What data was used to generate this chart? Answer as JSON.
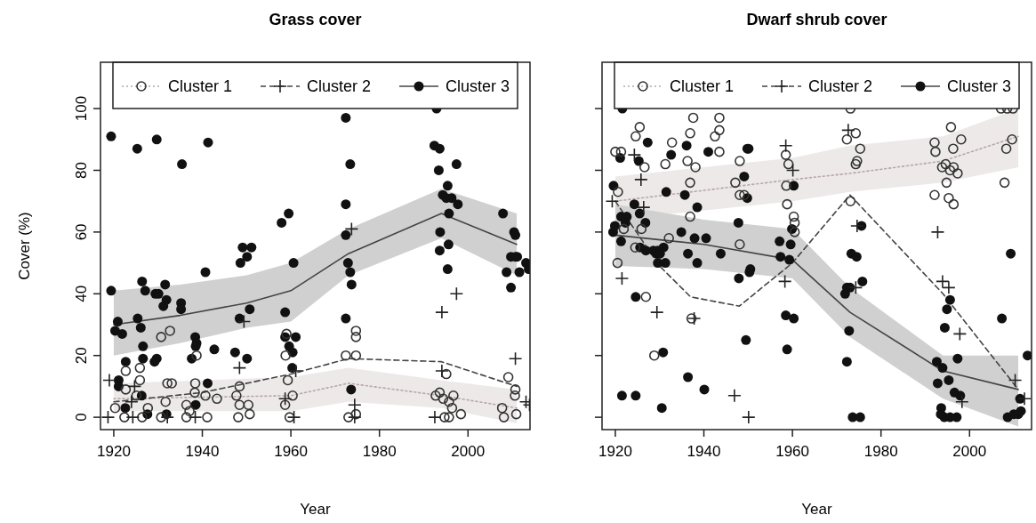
{
  "chart_data": [
    {
      "type": "scatter",
      "title": "Grass cover",
      "xlabel": "Year",
      "ylabel": "Cover (%)",
      "xlim": [
        1917,
        2014
      ],
      "ylim": [
        -4,
        115
      ],
      "xticks": [
        1920,
        1940,
        1960,
        1980,
        2000
      ],
      "yticks": [
        0,
        20,
        40,
        60,
        80,
        100
      ],
      "legend": "top",
      "series": [
        {
          "type": "line",
          "line_style": "dotted",
          "color": "#b8a8a8",
          "x": [
            1920,
            1960,
            1973,
            1994,
            2011
          ],
          "values": [
            6,
            7,
            11,
            7,
            3
          ],
          "lower": [
            2,
            2,
            5,
            3,
            -2
          ],
          "upper": [
            11,
            13,
            16,
            12,
            9
          ]
        },
        {
          "type": "line",
          "line_style": "dashed",
          "color": "#444444",
          "x": [
            1920,
            1940,
            1960,
            1973,
            1994,
            2011
          ],
          "values": [
            5,
            8,
            14,
            19,
            18,
            10
          ]
        },
        {
          "type": "line",
          "line_style": "solid",
          "color": "#444444",
          "x": [
            1920,
            1935,
            1950,
            1960,
            1973,
            1994,
            2011
          ],
          "values": [
            30,
            33,
            37,
            41,
            53,
            66,
            56
          ],
          "lower": [
            20,
            24,
            29,
            31,
            46,
            58,
            46
          ],
          "upper": [
            41,
            43,
            46,
            50,
            61,
            74,
            66
          ]
        },
        {
          "name": "Cluster 1",
          "marker": "circle",
          "color": "#333333",
          "x": [
            1932.7,
            1930.7,
            1974.7,
            1974.7,
            1972.4,
            1974.7,
            1938.7,
            1959,
            1958.8,
            1922.7,
            1925.9,
            1925.9,
            1922.7,
            1925.1,
            1932.1,
            1933.1,
            1938.4,
            1938.3,
            1940.7,
            1943.3,
            1948.4,
            1947.7,
            1948.4,
            1950.4,
            1959.3,
            1960.4,
            1958.7,
            1920.3,
            1931.7,
            1936.4,
            1937.1,
            1927.7,
            1922.4,
            1926.4,
            1930.7,
            1936.4,
            1941.1,
            1948.1,
            1950.7,
            1959.7,
            1973,
            1974.7,
            1995.1,
            2009.1,
            2010.7,
            2010.6,
            1992.7,
            1993.6,
            1994.4,
            1996.7,
            1995.7,
            1996.4,
            1998.4,
            1994.7,
            1995.7,
            2007.7,
            2008.1,
            2010.9
          ],
          "values": [
            28,
            26,
            28,
            26,
            20,
            20,
            20,
            27,
            20,
            15,
            16,
            12,
            9,
            7,
            11,
            11,
            11,
            8,
            7,
            6,
            10,
            7,
            4,
            4,
            12,
            7,
            4,
            3,
            5,
            4,
            2,
            3,
            0,
            0,
            0,
            0,
            0,
            0,
            1,
            0,
            0,
            1,
            14,
            13,
            9,
            7,
            7,
            8,
            6,
            7,
            5,
            3,
            1,
            0,
            0,
            3,
            0,
            1
          ]
        },
        {
          "name": "Cluster 2",
          "marker": "cross",
          "color": "#222222",
          "x": [
            1919,
            1924.7,
            1924,
            1918.7,
            1924.3,
            1932.1,
            1938.4,
            1948.4,
            1949.4,
            1958.7,
            1961.1,
            1960.7,
            1974.4,
            1974.4,
            1973.7,
            1997.4,
            1994.1,
            2010.7,
            1994.1,
            1992.5,
            2013.1,
            2013.9
          ],
          "values": [
            12,
            10,
            5,
            0,
            0,
            0,
            0,
            16,
            31,
            6,
            15,
            0,
            4,
            0,
            61,
            40,
            34,
            19,
            15,
            0,
            5,
            4
          ]
        },
        {
          "name": "Cluster 3",
          "marker": "circle",
          "color": "#111111",
          "x": [
            1919.4,
            1925.3,
            1929.7,
            1935.4,
            1941.3,
            1972.4,
            1973.4,
            1972.4,
            1959.5,
            1957.9,
            1949.1,
            1951.1,
            1950.1,
            1948.6,
            1960.6,
            1940.7,
            1919.4,
            1926.4,
            1931.6,
            1927.1,
            1929.4,
            1930.1,
            1931.9,
            1931.2,
            1935.2,
            1935.2,
            1950.7,
            1958.7,
            1972.9,
            1973.4,
            1973.7,
            1972.4,
            1972.4,
            1920.9,
            1925.4,
            1948.4,
            1920.3,
            1921.9,
            1926.1,
            1926.6,
            1926.6,
            1922.7,
            1929.7,
            1929.2,
            1938.4,
            1938.7,
            1938.5,
            1937.6,
            1942.7,
            1947.4,
            1950.1,
            1958.7,
            1961.1,
            1959.6,
            1960.4,
            1960.3,
            1973.6,
            1921.1,
            1921.1,
            1926.3,
            1941.2,
            1938.5,
            1922.6,
            1927.6,
            1931.9,
            1992.9,
            1992.4,
            1993.6,
            1997.4,
            1993.4,
            1995.4,
            1994.3,
            1995.1,
            1996.3,
            1997.7,
            1995.7,
            2007.9,
            1993.7,
            2010.4,
            2010.7,
            1993.6,
            1995.6,
            2010.7,
            1995.4,
            2009.7,
            2011.1,
            2013.1,
            2013.7,
            2008.7,
            2011.6,
            2009.7
          ],
          "values": [
            91,
            87,
            90,
            82,
            89,
            97,
            82,
            69,
            66,
            63,
            55,
            55,
            52,
            50,
            50,
            47,
            41,
            44,
            43,
            41,
            40,
            40,
            38,
            36,
            37,
            35,
            35,
            34,
            50,
            47,
            43,
            59,
            32,
            31,
            32,
            32,
            28,
            27,
            29,
            23,
            19,
            18,
            19,
            18,
            26,
            24,
            23,
            19,
            22,
            21,
            19,
            26,
            26,
            23,
            21,
            16,
            9,
            12,
            10,
            7,
            11,
            4,
            3,
            1,
            1,
            100,
            88,
            87,
            82,
            80,
            75,
            72,
            71,
            71,
            69,
            66,
            66,
            60,
            60,
            59,
            54,
            56,
            52,
            48,
            52,
            52,
            50,
            48,
            47,
            47,
            42
          ]
        }
      ]
    },
    {
      "type": "scatter",
      "title": "Dwarf shrub cover",
      "xlabel": "Year",
      "xlim": [
        1917,
        2014
      ],
      "ylim": [
        -4,
        115
      ],
      "xticks": [
        1920,
        1940,
        1960,
        1980,
        2000
      ],
      "yticks": [
        0,
        20,
        40,
        60,
        80,
        100
      ],
      "tick_labels": "x",
      "legend": "top",
      "series": [
        {
          "type": "line",
          "line_style": "dotted",
          "color": "#b8a8a8",
          "x": [
            1920,
            1960,
            1973,
            1994,
            2011
          ],
          "values": [
            70,
            77,
            79,
            83,
            91
          ],
          "lower": [
            64,
            70,
            73,
            76,
            81
          ],
          "upper": [
            78,
            84,
            88,
            91,
            100
          ]
        },
        {
          "type": "line",
          "line_style": "dashed",
          "color": "#444444",
          "x": [
            1920,
            1930,
            1937,
            1948,
            1960,
            1973,
            1994,
            2011
          ],
          "values": [
            70,
            49,
            39,
            36,
            50,
            72,
            40,
            9
          ]
        },
        {
          "type": "line",
          "line_style": "solid",
          "color": "#444444",
          "x": [
            1920,
            1940,
            1960,
            1973,
            1994,
            2011
          ],
          "values": [
            59,
            56,
            51,
            34,
            15,
            9
          ],
          "lower": [
            49,
            48,
            45,
            26,
            6,
            -3
          ],
          "upper": [
            69,
            64,
            61,
            42,
            20,
            20
          ]
        },
        {
          "name": "Cluster 1",
          "marker": "circle",
          "color": "#333333",
          "x": [
            1920,
            1921.3,
            1925.5,
            1924.6,
            1926.6,
            1932.8,
            1931.3,
            1937.6,
            1936.9,
            1936.3,
            1938.1,
            1943.5,
            1943.5,
            1942.5,
            1943.5,
            1948.1,
            1947.1,
            1948.1,
            1949.1,
            1958.5,
            1959.1,
            1958.6,
            1958.8,
            1960.3,
            1960.5,
            1960.5,
            1920.6,
            1921.9,
            1925.9,
            1936.9,
            1936.9,
            1932.1,
            1924.5,
            1920.5,
            1948.1,
            1926.9,
            1937.2,
            1928.8,
            1973.1,
            1974.3,
            1972.3,
            1975.3,
            1974.6,
            1974.3,
            1973.1,
            1995.8,
            1998.1,
            1992.1,
            1992.3,
            1996.3,
            1994.6,
            1996.4,
            1995.6,
            1997.3,
            1993.8,
            1994.8,
            1992.1,
            1995.3,
            1996.4,
            2007.1,
            2008.5,
            2009.8,
            2009.6,
            2008.3,
            2007.9
          ],
          "values": [
            86,
            86,
            94,
            91,
            81,
            89,
            82,
            97,
            92,
            83,
            81,
            97,
            93,
            91,
            86,
            83,
            76,
            72,
            72,
            85,
            82,
            75,
            69,
            65,
            63,
            60,
            73,
            61,
            61,
            76,
            65,
            58,
            55,
            50,
            56,
            39,
            32,
            20,
            100,
            92,
            90,
            87,
            83,
            82,
            70,
            94,
            90,
            89,
            86,
            87,
            82,
            81,
            80,
            79,
            81,
            76,
            72,
            71,
            69,
            100,
            100,
            100,
            90,
            87,
            76
          ]
        },
        {
          "name": "Cluster 2",
          "marker": "cross",
          "color": "#222222",
          "x": [
            1958.5,
            1960.1,
            1924.3,
            1925.8,
            1926.4,
            1919.3,
            1921.5,
            1929.4,
            1937.8,
            1958.3,
            1946.9,
            1950.1,
            1972.6,
            1974.6,
            1974.3,
            1992.8,
            1993.9,
            1995.3,
            1997.8,
            1998.3,
            2010.3,
            2012.4
          ],
          "values": [
            88,
            80,
            85,
            77,
            68,
            70,
            45,
            34,
            32,
            44,
            7,
            0,
            93,
            62,
            42,
            60,
            44,
            42,
            27,
            5,
            12,
            6
          ]
        },
        {
          "name": "Cluster 3",
          "marker": "circle",
          "color": "#111111",
          "x": [
            1921.6,
            1927.3,
            1921.1,
            1925.3,
            1932.6,
            1936.1,
            1941,
            1949.8,
            1950.1,
            1919.6,
            1931.5,
            1935.7,
            1949.1,
            1949.8,
            1960.3,
            1938.5,
            1924.3,
            1925.5,
            1921.3,
            1922.6,
            1922.3,
            1919.9,
            1919.5,
            1926.8,
            1921.3,
            1947.8,
            1934.9,
            1937.9,
            1940.5,
            1925.6,
            1926.9,
            1928.6,
            1929.6,
            1930.9,
            1929.3,
            1930.1,
            1936.4,
            1943.8,
            1929.6,
            1931.3,
            1938.5,
            1950.5,
            1950.3,
            1947.9,
            1957.1,
            1959.6,
            1957.3,
            1959.3,
            1959.9,
            1973.3,
            1974.5,
            1975.6,
            1975.8,
            1972.3,
            1973,
            1971.9,
            1958.5,
            1960.3,
            1995.6,
            1994.9,
            2009.3,
            2007.3,
            1958.8,
            1972.8,
            1972.3,
            1973.6,
            1975.3,
            1994.4,
            1997.3,
            1992.6,
            1993.9,
            1995.3,
            1992.8,
            1996.6,
            1997.9,
            1993.6,
            1994.3,
            1995.6,
            1997.1,
            1993.5,
            2013.1,
            2011.4,
            2008.6,
            2010,
            2011,
            2011.6,
            1924.6,
            1930.8,
            1921.5,
            1924.6,
            1930.5,
            1936.4,
            1940.1,
            1949.5
          ],
          "values": [
            100,
            89,
            84,
            83,
            85,
            88,
            86,
            87,
            87,
            75,
            73,
            72,
            78,
            71,
            75,
            68,
            69,
            66,
            65,
            65,
            63,
            62,
            60,
            63,
            57,
            63,
            60,
            58,
            58,
            55,
            54,
            54,
            54,
            55,
            53,
            53,
            53,
            53,
            50,
            50,
            50,
            48,
            47,
            45,
            57,
            56,
            52,
            51,
            61,
            53,
            52,
            62,
            44,
            42,
            42,
            40,
            33,
            32,
            38,
            35,
            53,
            32,
            22,
            28,
            18,
            0,
            0,
            29,
            19,
            18,
            16,
            12,
            11,
            8,
            7,
            3,
            0,
            0,
            0,
            1,
            20,
            6,
            0,
            1,
            1,
            2,
            39,
            21,
            7,
            7,
            3,
            13,
            9,
            25
          ]
        }
      ]
    }
  ]
}
